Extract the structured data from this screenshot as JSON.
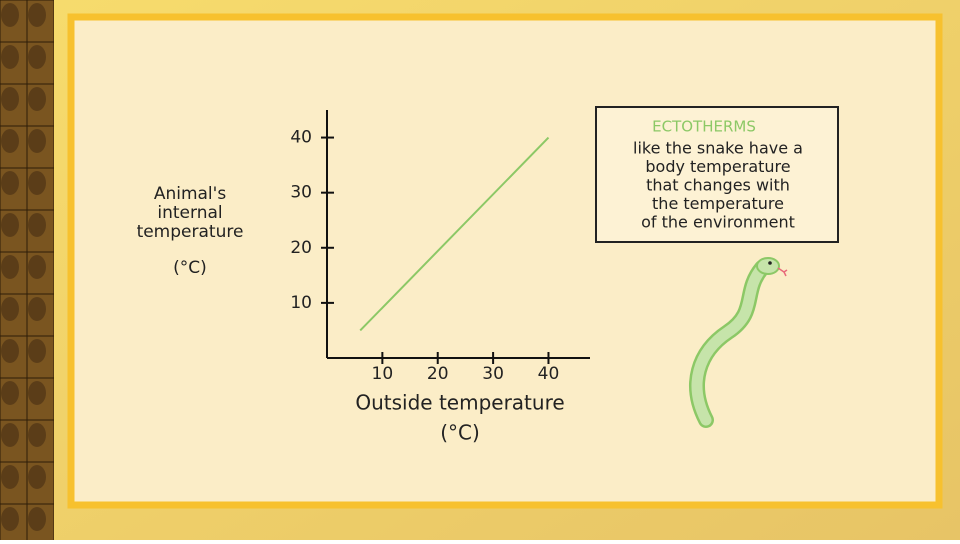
{
  "chart_data": {
    "type": "line",
    "ylabel": [
      "Animal's",
      "internal",
      "temperature",
      "(°C)"
    ],
    "xlabel": [
      "Outside temperature",
      "(°C)"
    ],
    "x": [
      6,
      40
    ],
    "values": [
      5,
      40
    ],
    "color": "#8cc866",
    "xlim": [
      0,
      47.5
    ],
    "ylim": [
      0,
      45
    ],
    "xticks": [
      10,
      20,
      30,
      40
    ],
    "yticks": [
      10,
      20,
      30,
      40
    ],
    "annotation": {
      "title": "ECTOTHERMS",
      "lines": [
        "like the snake have a",
        "body temperature",
        "that changes with",
        "the temperature",
        "of the environment"
      ]
    }
  }
}
